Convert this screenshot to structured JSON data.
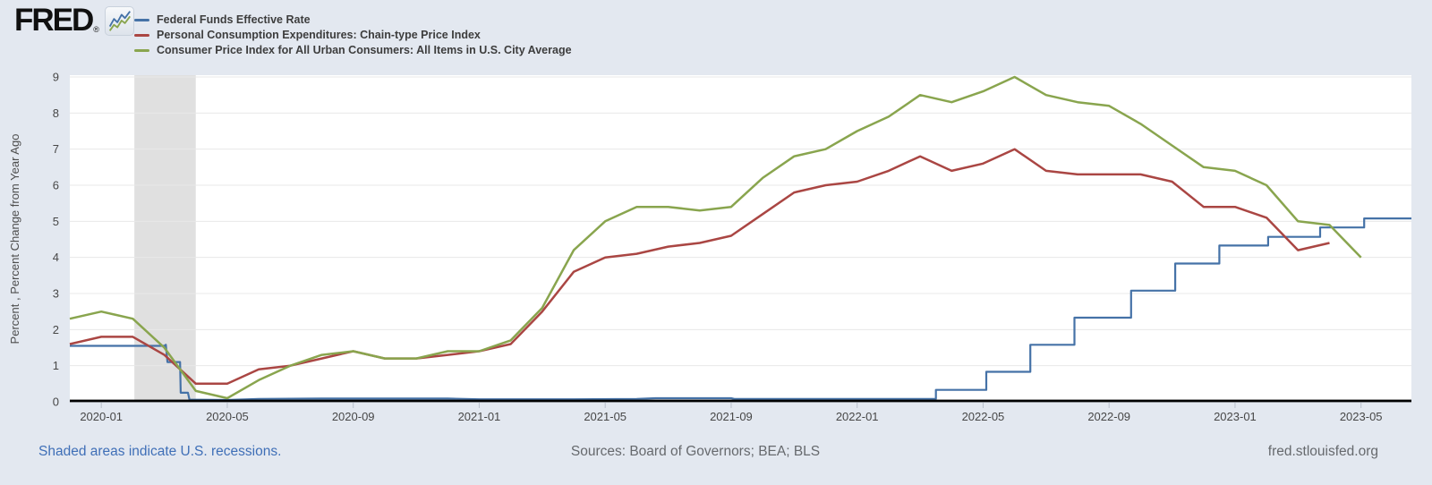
{
  "header": {
    "logo_text": "FRED",
    "logo_reg_mark": "®",
    "sparkline_icon": "line-chart-sparkline",
    "legend": [
      {
        "key": "ffr",
        "label": "Federal Funds Effective Rate",
        "color": "#4572a7"
      },
      {
        "key": "pce",
        "label": "Personal Consumption Expenditures: Chain-type Price Index",
        "color": "#aa4643"
      },
      {
        "key": "cpi",
        "label": "Consumer Price Index for All Urban Consumers: All Items in U.S. City Average",
        "color": "#89a54e"
      }
    ]
  },
  "footer": {
    "recession_note": "Shaded areas indicate U.S. recessions.",
    "sources": "Sources: Board of Governors; BEA; BLS",
    "site": "fred.stlouisfed.org"
  },
  "chart_data": {
    "type": "line",
    "title": "",
    "ylabel": "Percent , Percent Change from Year Ago",
    "xlabel": "",
    "ylim": [
      0,
      9
    ],
    "yticks": [
      0,
      1,
      2,
      3,
      4,
      5,
      6,
      7,
      8,
      9
    ],
    "grid": true,
    "legend_position": "top-left",
    "x_unit": "months since 2019-12-01",
    "xlim": [
      0,
      42.6
    ],
    "x_start_month": "2019-12",
    "xticks": [
      {
        "t": 1,
        "label": "2020-01"
      },
      {
        "t": 5,
        "label": "2020-05"
      },
      {
        "t": 9,
        "label": "2020-09"
      },
      {
        "t": 13,
        "label": "2021-01"
      },
      {
        "t": 17,
        "label": "2021-05"
      },
      {
        "t": 21,
        "label": "2021-09"
      },
      {
        "t": 25,
        "label": "2022-01"
      },
      {
        "t": 29,
        "label": "2022-05"
      },
      {
        "t": 33,
        "label": "2022-09"
      },
      {
        "t": 37,
        "label": "2023-01"
      },
      {
        "t": 41,
        "label": "2023-05"
      }
    ],
    "recessions": [
      {
        "start": "2020-02",
        "end": "2020-04",
        "start_t": 2.05,
        "end_t": 4.0,
        "color": "#e0e0e0"
      }
    ],
    "series": [
      {
        "key": "ffr",
        "name": "Federal Funds Effective Rate",
        "color": "#4572a7",
        "mode": "steps",
        "points": [
          [
            0,
            1.55
          ],
          [
            3.0,
            1.55
          ],
          [
            3.05,
            1.58
          ],
          [
            3.1,
            1.1
          ],
          [
            3.5,
            1.1
          ],
          [
            3.52,
            0.25
          ],
          [
            3.75,
            0.25
          ],
          [
            3.8,
            0.06
          ],
          [
            5,
            0.05
          ],
          [
            6,
            0.08
          ],
          [
            8,
            0.09
          ],
          [
            10,
            0.09
          ],
          [
            12,
            0.09
          ],
          [
            13,
            0.07
          ],
          [
            16,
            0.07
          ],
          [
            18,
            0.08
          ],
          [
            18.6,
            0.1
          ],
          [
            21,
            0.1
          ],
          [
            21.1,
            0.08
          ],
          [
            24,
            0.08
          ],
          [
            27.5,
            0.08
          ],
          [
            27.5,
            0.33
          ],
          [
            29.1,
            0.33
          ],
          [
            29.1,
            0.83
          ],
          [
            30.5,
            0.83
          ],
          [
            30.5,
            1.58
          ],
          [
            31.9,
            1.58
          ],
          [
            31.9,
            2.33
          ],
          [
            33.7,
            2.33
          ],
          [
            33.7,
            3.08
          ],
          [
            35.1,
            3.08
          ],
          [
            35.1,
            3.83
          ],
          [
            36.5,
            3.83
          ],
          [
            36.5,
            4.33
          ],
          [
            38.05,
            4.33
          ],
          [
            38.05,
            4.57
          ],
          [
            39.7,
            4.57
          ],
          [
            39.7,
            4.83
          ],
          [
            41.1,
            4.83
          ],
          [
            41.1,
            5.08
          ],
          [
            42.6,
            5.08
          ]
        ]
      },
      {
        "key": "pce",
        "name": "Personal Consumption Expenditures: Chain-type Price Index",
        "color": "#aa4643",
        "mode": "monthly",
        "start_t": 0,
        "first_month": "2019-12",
        "values": [
          1.6,
          1.8,
          1.8,
          1.3,
          0.5,
          0.5,
          0.9,
          1.0,
          1.2,
          1.4,
          1.2,
          1.2,
          1.3,
          1.4,
          1.6,
          2.5,
          3.6,
          4.0,
          4.1,
          4.3,
          4.4,
          4.6,
          5.2,
          5.8,
          6.0,
          6.1,
          6.4,
          6.8,
          6.4,
          6.6,
          7.0,
          6.4,
          6.3,
          6.3,
          6.3,
          6.1,
          5.4,
          5.4,
          5.1,
          4.2,
          4.4
        ]
      },
      {
        "key": "cpi",
        "name": "Consumer Price Index for All Urban Consumers: All Items in U.S. City Average",
        "color": "#89a54e",
        "mode": "monthly",
        "start_t": 0,
        "first_month": "2019-12",
        "values": [
          2.3,
          2.5,
          2.3,
          1.5,
          0.3,
          0.1,
          0.6,
          1.0,
          1.3,
          1.4,
          1.2,
          1.2,
          1.4,
          1.4,
          1.7,
          2.6,
          4.2,
          5.0,
          5.4,
          5.4,
          5.3,
          5.4,
          6.2,
          6.8,
          7.0,
          7.5,
          7.9,
          8.5,
          8.3,
          8.6,
          9.0,
          8.5,
          8.3,
          8.2,
          7.7,
          7.1,
          6.5,
          6.4,
          6.0,
          5.0,
          4.9,
          4.0
        ]
      }
    ]
  }
}
